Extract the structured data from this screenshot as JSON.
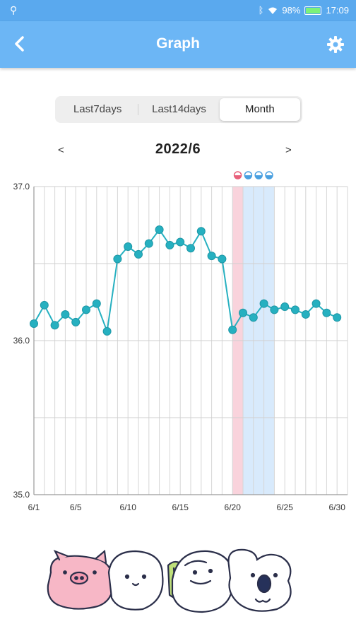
{
  "status_bar": {
    "battery": "98%",
    "time": "17:09",
    "icons": [
      "usb-icon",
      "bluetooth-icon",
      "wifi-icon",
      "battery-icon"
    ],
    "battery_level": 0.98
  },
  "app_bar": {
    "title": "Graph",
    "back_icon": "chevron-left-icon",
    "settings_icon": "gear-icon",
    "background": "#6cb6f5"
  },
  "period_tabs": [
    {
      "label": "Last7days",
      "active": false
    },
    {
      "label": "Last14days",
      "active": false
    },
    {
      "label": "Month",
      "active": true
    }
  ],
  "month_nav": {
    "prev": "<",
    "label": "2022/6",
    "next": ">"
  },
  "chart_data": {
    "type": "line",
    "title": "",
    "xlabel": "",
    "ylabel": "",
    "ylim": [
      35.0,
      37.0
    ],
    "yticks": [
      "37.0",
      "36.0",
      "35.0"
    ],
    "xticks": [
      {
        "day": 1,
        "label": "6/1"
      },
      {
        "day": 5,
        "label": "6/5"
      },
      {
        "day": 10,
        "label": "6/10"
      },
      {
        "day": 15,
        "label": "6/15"
      },
      {
        "day": 20,
        "label": "6/20"
      },
      {
        "day": 25,
        "label": "6/25"
      },
      {
        "day": 30,
        "label": "6/30"
      }
    ],
    "x": [
      1,
      2,
      3,
      4,
      5,
      6,
      7,
      8,
      9,
      10,
      11,
      12,
      13,
      14,
      15,
      16,
      17,
      18,
      19,
      20,
      21,
      22,
      23,
      24,
      25,
      26,
      27,
      28,
      29,
      30
    ],
    "series": [
      {
        "values": [
          36.11,
          36.23,
          36.1,
          36.17,
          36.12,
          36.2,
          36.24,
          36.06,
          36.53,
          36.61,
          36.56,
          36.63,
          36.72,
          36.62,
          36.64,
          36.6,
          36.71,
          36.55,
          36.53,
          36.07,
          36.18,
          36.15,
          36.24,
          36.2,
          36.22,
          36.2,
          36.17,
          36.24,
          36.18,
          36.15
        ],
        "color": "#26b0c0"
      }
    ],
    "bands": [
      {
        "from_day": 20,
        "to_day": 21,
        "color": "#f9d3dc",
        "kind": "period"
      },
      {
        "from_day": 21,
        "to_day": 24,
        "color": "#d8eafc",
        "kind": "fertile"
      }
    ],
    "markers": [
      {
        "day": 20,
        "color": "#e8607a"
      },
      {
        "day": 21,
        "color": "#4aa0e0"
      },
      {
        "day": 22,
        "color": "#4aa0e0"
      },
      {
        "day": 23,
        "color": "#4aa0e0"
      }
    ],
    "grid": true
  },
  "illustration": {
    "name": "mascot-characters-illustration"
  }
}
